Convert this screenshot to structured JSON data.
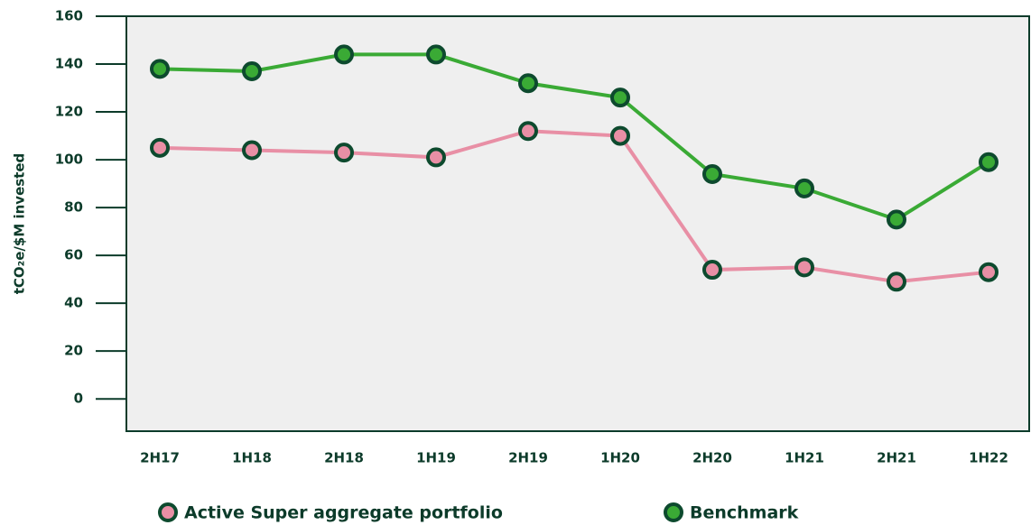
{
  "chart_data": {
    "type": "line",
    "y_label": "tCO₂e/$M invested",
    "categories": [
      "2H17",
      "1H18",
      "2H18",
      "1H19",
      "2H19",
      "1H20",
      "2H20",
      "1H21",
      "2H21",
      "1H22"
    ],
    "series": [
      {
        "name": "Active Super aggregate portfolio",
        "color": "#e88fa5",
        "values": [
          105,
          104,
          103,
          101,
          112,
          110,
          54,
          55,
          49,
          53
        ]
      },
      {
        "name": "Benchmark",
        "color": "#3aaa35",
        "values": [
          138,
          137,
          144,
          144,
          132,
          126,
          94,
          88,
          75,
          99
        ]
      }
    ],
    "ylim": [
      -13.5,
      160
    ],
    "yticks": [
      0,
      20,
      40,
      60,
      80,
      100,
      120,
      140,
      160
    ]
  }
}
